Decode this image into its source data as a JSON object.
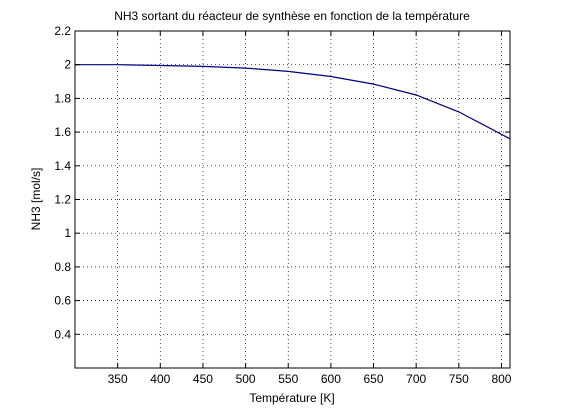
{
  "chart_data": {
    "type": "line",
    "title": "NH3 sortant du réacteur de synthèse en fonction de la température",
    "xlabel": "Température [K]",
    "ylabel": "NH3 [mol/s]",
    "xlim": [
      300,
      810
    ],
    "ylim": [
      0.2,
      2.2
    ],
    "xticks": [
      350,
      400,
      450,
      500,
      550,
      600,
      650,
      700,
      750,
      800
    ],
    "yticks": [
      0.4,
      0.6,
      0.8,
      1,
      1.2,
      1.4,
      1.6,
      1.8,
      2,
      2.2
    ],
    "grid": "dotted",
    "series": [
      {
        "color": "#00007f",
        "x": [
          300,
          350,
          400,
          450,
          500,
          550,
          600,
          650,
          700,
          750,
          810
        ],
        "y": [
          2.0,
          2.0,
          1.995,
          1.99,
          1.98,
          1.96,
          1.93,
          1.885,
          1.82,
          1.72,
          1.56
        ]
      }
    ]
  }
}
